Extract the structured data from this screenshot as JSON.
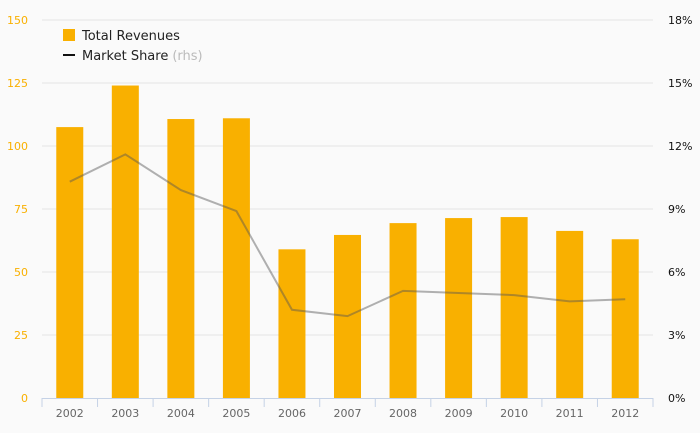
{
  "chart_data": {
    "type": "bar",
    "categories": [
      "2002",
      "2003",
      "2004",
      "2005",
      "2006",
      "2007",
      "2008",
      "2009",
      "2010",
      "2011",
      "2012"
    ],
    "series": [
      {
        "name": "Total Revenues",
        "type": "bar",
        "axis": "left",
        "color": "#f9b000",
        "values": [
          107.5,
          124,
          110.7,
          111,
          59,
          64.7,
          69.4,
          71.4,
          71.8,
          66.3,
          63
        ]
      },
      {
        "name": "Market Share",
        "suffix": "(rhs)",
        "type": "line",
        "axis": "right",
        "color": "#999999",
        "values": [
          10.3,
          11.6,
          9.9,
          8.9,
          4.2,
          3.9,
          5.1,
          5.0,
          4.9,
          4.6,
          4.7
        ]
      }
    ],
    "yleft": {
      "ticks": [
        "0",
        "25",
        "50",
        "75",
        "100",
        "125",
        "150"
      ],
      "range": [
        0,
        150
      ]
    },
    "yright": {
      "ticks": [
        "0%",
        "3%",
        "6%",
        "9%",
        "12%",
        "15%",
        "18%"
      ],
      "range": [
        0,
        18
      ]
    },
    "grid": true,
    "legend": "top-left"
  }
}
